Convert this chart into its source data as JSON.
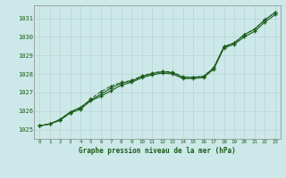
{
  "background_color": "#cce8e8",
  "grid_color": "#b0c8c8",
  "line_color": "#1a5c1a",
  "title": "Graphe pression niveau de la mer (hPa)",
  "xlim": [
    -0.5,
    23.5
  ],
  "ylim": [
    1024.5,
    1031.7
  ],
  "xticks": [
    0,
    1,
    2,
    3,
    4,
    5,
    6,
    7,
    8,
    9,
    10,
    11,
    12,
    13,
    14,
    15,
    16,
    17,
    18,
    19,
    20,
    21,
    22,
    23
  ],
  "yticks": [
    1025,
    1026,
    1027,
    1028,
    1029,
    1030,
    1031
  ],
  "hours": [
    0,
    1,
    2,
    3,
    4,
    5,
    6,
    7,
    8,
    9,
    10,
    11,
    12,
    13,
    14,
    15,
    16,
    17,
    18,
    19,
    20,
    21,
    22,
    23
  ],
  "series1": [
    1025.2,
    1025.3,
    1025.5,
    1025.9,
    1026.1,
    1026.55,
    1026.8,
    1027.1,
    1027.4,
    1027.55,
    1027.8,
    1027.95,
    1028.05,
    1028.0,
    1027.75,
    1027.75,
    1027.8,
    1028.25,
    1029.4,
    1029.6,
    1030.0,
    1030.3,
    1030.8,
    1031.2
  ],
  "series2": [
    1025.2,
    1025.3,
    1025.55,
    1025.95,
    1026.2,
    1026.6,
    1026.9,
    1027.25,
    1027.5,
    1027.62,
    1027.87,
    1028.02,
    1028.12,
    1028.07,
    1027.82,
    1027.82,
    1027.87,
    1028.32,
    1029.47,
    1029.67,
    1030.12,
    1030.42,
    1030.92,
    1031.32
  ],
  "series3_dotted": [
    1025.2,
    1025.3,
    1025.5,
    1025.9,
    1026.15,
    1026.65,
    1027.05,
    1027.35,
    1027.55,
    1027.65,
    1027.9,
    1028.05,
    1028.15,
    1028.1,
    1027.85,
    1027.82,
    1027.87,
    1028.32,
    1029.47,
    1029.67,
    1030.12,
    1030.42,
    1030.92,
    1031.32
  ]
}
